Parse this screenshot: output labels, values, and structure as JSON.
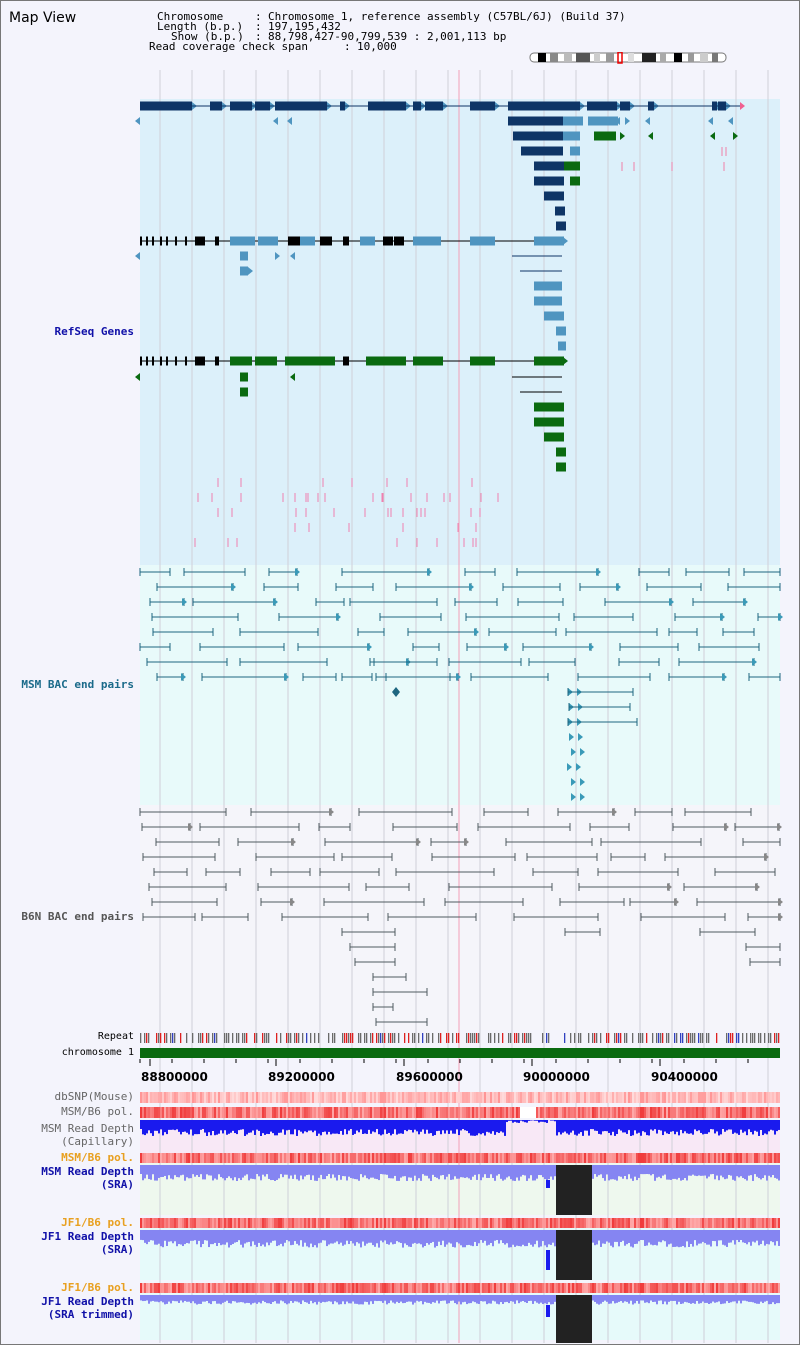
{
  "page_title": "Map View",
  "header": {
    "chromosome_label": "Chromosome",
    "chromosome_value": "Chromosome 1, reference assembly (C57BL/6J) (Build 37)",
    "length_label": "Length (b.p.)",
    "length_value": "197,195,432",
    "show_label": "Show (b.p.)",
    "show_value": "88,798,427-90,799,539 : 2,001,113 bp",
    "coverage_label": "Read coverage check span",
    "coverage_value": "10,000"
  },
  "tracks": {
    "refseq": "RefSeq Genes",
    "msm_bac": "MSM BAC end pairs",
    "b6n_bac": "B6N BAC end pairs",
    "repeat": "Repeat",
    "chromosome": "chromosome 1",
    "dbsnp": "dbSNP(Mouse)",
    "msm_b6_pol": "MSM/B6 pol.",
    "msm_depth_cap_1": "MSM Read Depth",
    "msm_depth_cap_2": "(Capillary)",
    "msm_b6_pol2": "MSM/B6 pol.",
    "msm_depth_sra_1": "MSM Read Depth",
    "msm_depth_sra_2": "(SRA)",
    "jf1_b6_pol": "JF1/B6 pol.",
    "jf1_depth_sra_1": "JF1 Read Depth",
    "jf1_depth_sra_2": "(SRA)",
    "jf1_b6_pol2": "JF1/B6 pol.",
    "jf1_depth_trim_1": "JF1 Read Depth",
    "jf1_depth_trim_2": "(SRA trimmed)"
  },
  "axis": {
    "ticks": [
      "88800000",
      "89200000",
      "89600000",
      "90000000",
      "90400000"
    ]
  },
  "colors": {
    "refseq_bg": "#dcf0fa",
    "msm_bg": "#e8fafa",
    "b6n_bg": "#f5f5fa",
    "gene_dark": "#0e3566",
    "gene_mid": "#4f95c0",
    "gene_green": "#0a6a10",
    "msm_pair": "#1e6680",
    "b6n_pair": "#505a60",
    "chromosome_bar": "#0a6a10",
    "depth_blue": "#1a1aee",
    "depth_light": "#8585f2",
    "pol_red": "#f04040"
  }
}
